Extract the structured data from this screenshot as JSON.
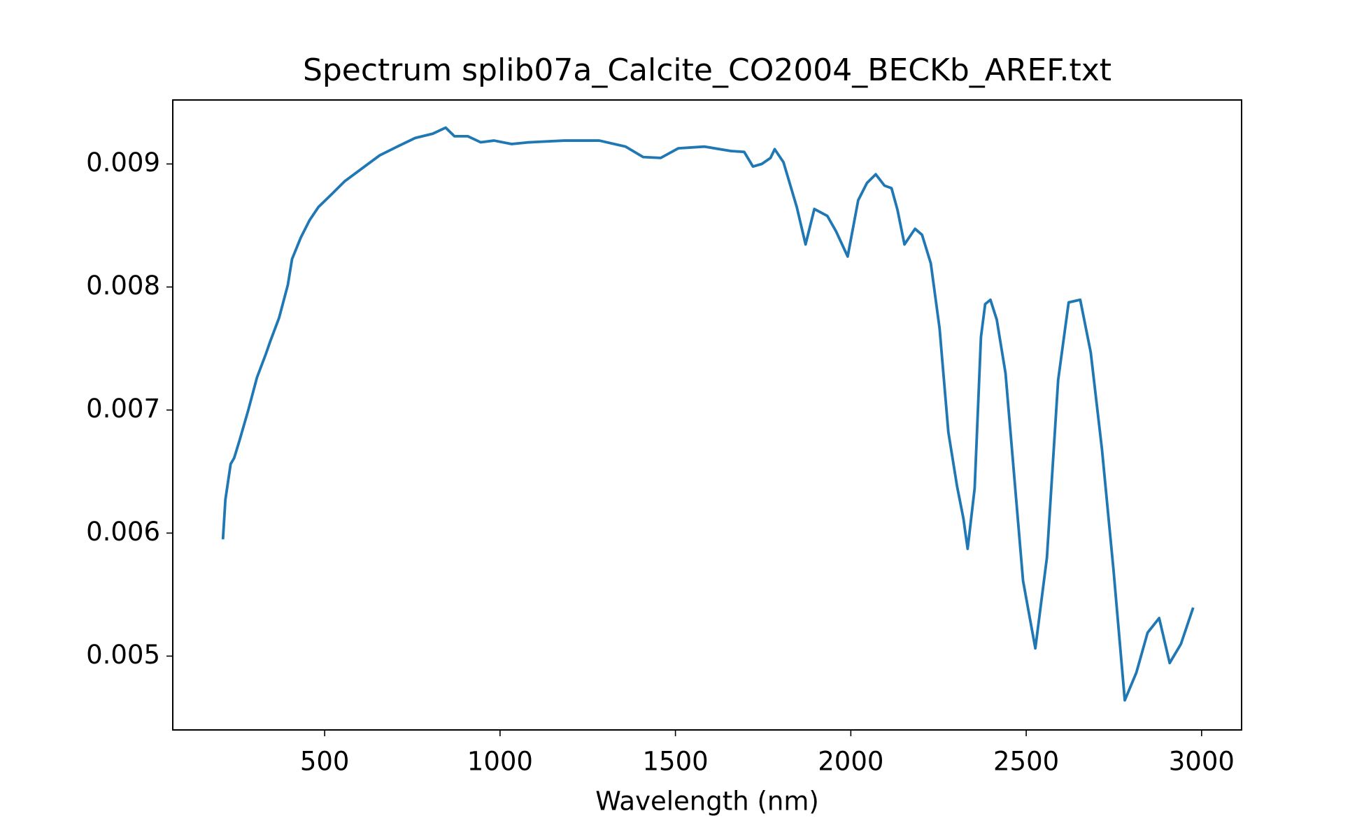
{
  "chart_data": {
    "type": "line",
    "title": "Spectrum splib07a_Calcite_CO2004_BECKb_AREF.txt",
    "x_label": "Wavelength (nm)",
    "x": [
      210,
      217,
      232,
      242,
      257,
      282,
      307,
      332,
      345,
      370,
      395,
      407,
      432,
      457,
      482,
      520,
      557,
      607,
      657,
      707,
      758,
      808,
      845,
      870,
      908,
      945,
      983,
      1033,
      1083,
      1183,
      1283,
      1358,
      1408,
      1458,
      1508,
      1583,
      1658,
      1696,
      1721,
      1746,
      1771,
      1783,
      1808,
      1846,
      1871,
      1896,
      1933,
      1958,
      1991,
      2021,
      2046,
      2071,
      2096,
      2116,
      2133,
      2153,
      2183,
      2203,
      2228,
      2253,
      2278,
      2303,
      2321,
      2333,
      2353,
      2371,
      2383,
      2398,
      2416,
      2441,
      2491,
      2526,
      2559,
      2591,
      2621,
      2654,
      2684,
      2716,
      2749,
      2781,
      2814,
      2846,
      2879,
      2909,
      2941,
      2976
    ],
    "values": [
      0.005949,
      0.006272,
      0.006561,
      0.00661,
      0.00675,
      0.006997,
      0.007264,
      0.007453,
      0.007559,
      0.007749,
      0.008016,
      0.008227,
      0.008402,
      0.008543,
      0.008649,
      0.008754,
      0.008859,
      0.008965,
      0.00907,
      0.009141,
      0.009211,
      0.009246,
      0.009295,
      0.009225,
      0.009225,
      0.009176,
      0.00919,
      0.009162,
      0.009176,
      0.00919,
      0.00919,
      0.009141,
      0.009056,
      0.009049,
      0.009127,
      0.009141,
      0.009105,
      0.009098,
      0.008979,
      0.009,
      0.009049,
      0.00912,
      0.009014,
      0.008649,
      0.008346,
      0.008634,
      0.008578,
      0.008452,
      0.008248,
      0.008705,
      0.008845,
      0.008916,
      0.008824,
      0.008803,
      0.008627,
      0.008346,
      0.008473,
      0.008424,
      0.008192,
      0.007664,
      0.006821,
      0.006378,
      0.006118,
      0.005872,
      0.006364,
      0.007594,
      0.007861,
      0.007896,
      0.007735,
      0.007299,
      0.005612,
      0.005063,
      0.005801,
      0.007243,
      0.007875,
      0.007896,
      0.007467,
      0.00668,
      0.005696,
      0.004641,
      0.004866,
      0.00519,
      0.005309,
      0.004944,
      0.005098,
      0.005394
    ],
    "color": "#1f77b4",
    "xlim": [
      67,
      3114
    ],
    "xticks": [
      500,
      1000,
      1500,
      2000,
      2500,
      3000
    ],
    "ylim": [
      0.0044,
      0.00952
    ],
    "yticks": [
      0.005,
      0.006,
      0.007,
      0.008,
      0.009
    ],
    "grid": false
  }
}
